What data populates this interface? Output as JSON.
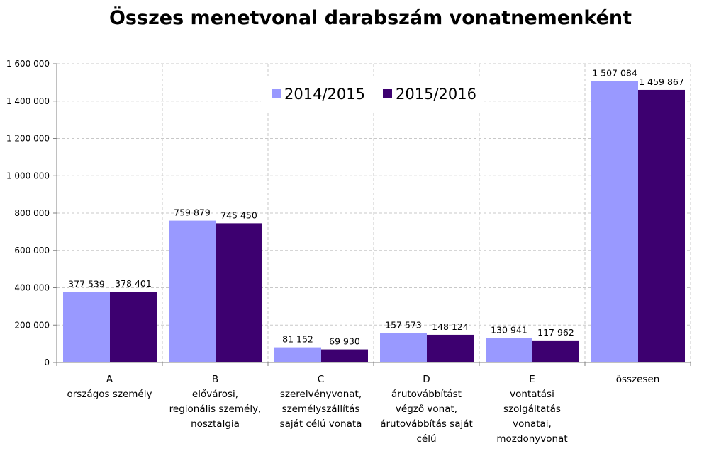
{
  "chart_data": {
    "type": "bar",
    "title": "Összes menetvonal darabszám vonatnemenként",
    "categories": [
      [
        "A",
        "országos személy"
      ],
      [
        "B",
        "elővárosi,",
        "regionális személy,",
        "nosztalgia"
      ],
      [
        "C",
        "szerelvényvonat,",
        "személyszállítás",
        "saját célú vonata"
      ],
      [
        "D",
        "árutovábbítást",
        "végző vonat,",
        "árutovábbítás saját",
        "célú"
      ],
      [
        "E",
        "vontatási",
        "szolgáltatás",
        "vonatai,",
        "mozdonyvonat"
      ],
      [
        "összesen"
      ]
    ],
    "series": [
      {
        "name": "2014/2015",
        "color": "#9999ff",
        "values": [
          377539,
          759879,
          81152,
          157573,
          130941,
          1507084
        ],
        "labels": [
          "377 539",
          "759 879",
          "81 152",
          "157 573",
          "130 941",
          "1 507 084"
        ]
      },
      {
        "name": "2015/2016",
        "color": "#3d0070",
        "values": [
          378401,
          745450,
          69930,
          148124,
          117962,
          1459867
        ],
        "labels": [
          "378 401",
          "745 450",
          "69 930",
          "148 124",
          "117 962",
          "1 459 867"
        ]
      }
    ],
    "ylim": [
      0,
      1600000
    ],
    "yticks": [
      0,
      200000,
      400000,
      600000,
      800000,
      1000000,
      1200000,
      1400000,
      1600000
    ],
    "ytick_labels": [
      "0",
      "200 000",
      "400 000",
      "600 000",
      "800 000",
      "1 000 000",
      "1 200 000",
      "1 400 000",
      "1 600 000"
    ],
    "grid": true,
    "legend_position": "top-center"
  }
}
